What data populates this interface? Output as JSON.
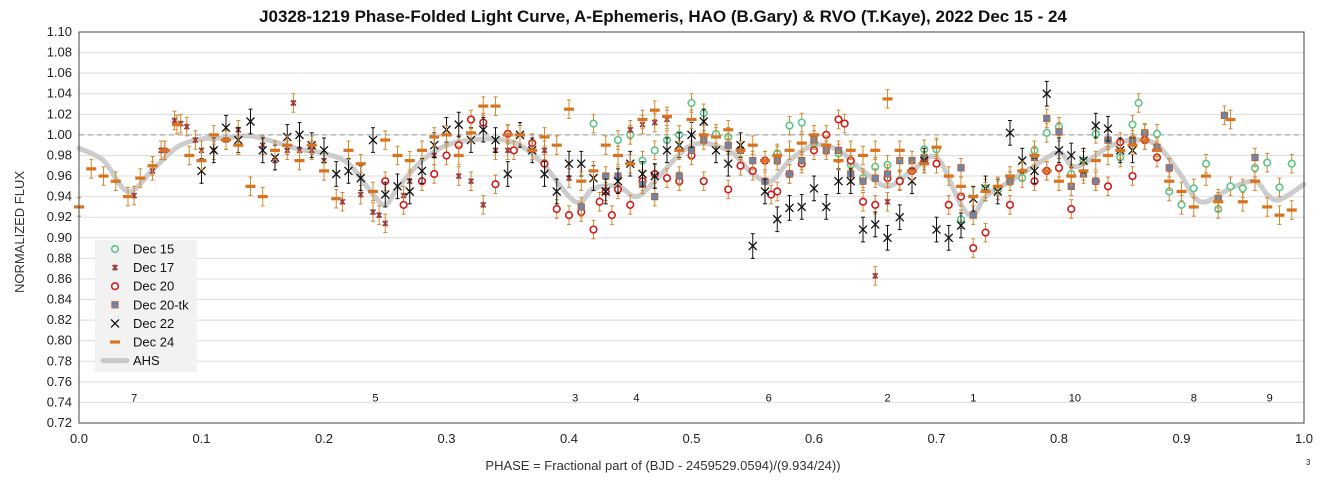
{
  "chart_data": {
    "type": "scatter",
    "title": "J0328-1219 Phase-Folded Light Curve, A-Ephemeris, HAO (B.Gary) & RVO (T.Kaye), 2022 Dec 15 - 24",
    "xlabel": "PHASE = Fractional part of (BJD - 2459529.0594)/(9.934/24))",
    "ylabel": "NORMALIZED FLUX",
    "xlim": [
      0.0,
      1.0
    ],
    "ylim": [
      0.72,
      1.1
    ],
    "x_ticks": [
      "0.0",
      "0.1",
      "0.2",
      "0.3",
      "0.4",
      "0.5",
      "0.6",
      "0.7",
      "0.8",
      "0.9",
      "1.0"
    ],
    "y_ticks": [
      "0.72",
      "0.74",
      "0.76",
      "0.78",
      "0.80",
      "0.82",
      "0.84",
      "0.86",
      "0.88",
      "0.90",
      "0.92",
      "0.94",
      "0.96",
      "0.98",
      "1.00",
      "1.02",
      "1.04",
      "1.06",
      "1.08",
      "1.10"
    ],
    "grid": "horizontal",
    "reference_line": 1.0,
    "footnote": "3",
    "legend_position": "lower-left",
    "colors": {
      "Dec 15": "#5dc48a",
      "Dec 17": "#9b3d3d",
      "Dec 20": "#d01c1c",
      "Dec 20-tk": "#6f84a8",
      "Dec 22": "#111111",
      "Dec 24": "#d9731f",
      "AHS": "#c8c8c8",
      "errorbar": "#d08a30"
    },
    "dip_labels": [
      {
        "text": "7",
        "x": 0.045
      },
      {
        "text": "5",
        "x": 0.242
      },
      {
        "text": "3",
        "x": 0.405
      },
      {
        "text": "4",
        "x": 0.455
      },
      {
        "text": "6",
        "x": 0.563
      },
      {
        "text": "2",
        "x": 0.66
      },
      {
        "text": "1",
        "x": 0.73
      },
      {
        "text": "10",
        "x": 0.813
      },
      {
        "text": "8",
        "x": 0.91
      },
      {
        "text": "9",
        "x": 0.972
      }
    ],
    "ahs_curve": {
      "name": "AHS",
      "x": [
        0.0,
        0.02,
        0.04,
        0.06,
        0.08,
        0.1,
        0.12,
        0.14,
        0.16,
        0.18,
        0.2,
        0.22,
        0.24,
        0.25,
        0.26,
        0.28,
        0.3,
        0.32,
        0.34,
        0.36,
        0.38,
        0.4,
        0.41,
        0.42,
        0.44,
        0.455,
        0.47,
        0.5,
        0.53,
        0.55,
        0.565,
        0.58,
        0.6,
        0.62,
        0.64,
        0.66,
        0.68,
        0.7,
        0.72,
        0.73,
        0.74,
        0.76,
        0.78,
        0.8,
        0.81,
        0.82,
        0.84,
        0.86,
        0.88,
        0.9,
        0.91,
        0.92,
        0.94,
        0.96,
        0.97,
        0.98,
        1.0
      ],
      "y": [
        0.987,
        0.975,
        0.945,
        0.966,
        0.988,
        0.996,
        0.997,
        0.999,
        0.993,
        0.986,
        0.982,
        0.972,
        0.942,
        0.932,
        0.948,
        0.975,
        0.99,
        0.995,
        0.996,
        0.99,
        0.97,
        0.94,
        0.935,
        0.948,
        0.95,
        0.94,
        0.955,
        0.99,
        0.985,
        0.962,
        0.955,
        0.975,
        0.99,
        0.985,
        0.965,
        0.95,
        0.965,
        0.978,
        0.932,
        0.922,
        0.94,
        0.955,
        0.97,
        0.983,
        0.97,
        0.972,
        0.988,
        0.995,
        0.99,
        0.96,
        0.94,
        0.935,
        0.948,
        0.955,
        0.942,
        0.937,
        0.952
      ]
    },
    "series": [
      {
        "name": "Dec 15",
        "marker": "circle-open",
        "x": [
          0.42,
          0.44,
          0.45,
          0.46,
          0.47,
          0.48,
          0.49,
          0.5,
          0.51,
          0.52,
          0.53,
          0.54,
          0.57,
          0.58,
          0.59,
          0.6,
          0.62,
          0.63,
          0.64,
          0.65,
          0.66,
          0.67,
          0.69,
          0.7,
          0.72,
          0.74,
          0.75,
          0.76,
          0.77,
          0.78,
          0.79,
          0.8,
          0.81,
          0.82,
          0.83,
          0.84,
          0.85,
          0.86,
          0.865,
          0.87,
          0.88,
          0.89,
          0.9,
          0.91,
          0.92,
          0.93,
          0.94,
          0.95,
          0.96,
          0.97,
          0.98,
          0.99
        ],
        "y": [
          1.011,
          0.995,
          1.0,
          0.975,
          0.985,
          0.995,
          1.0,
          1.031,
          1.021,
          1.001,
          0.998,
          0.985,
          0.982,
          1.009,
          1.012,
          0.992,
          0.982,
          0.971,
          0.958,
          0.969,
          0.971,
          0.956,
          0.986,
          0.986,
          0.918,
          0.948,
          0.946,
          0.955,
          0.958,
          0.985,
          1.002,
          1.008,
          0.962,
          0.975,
          1.001,
          0.995,
          0.978,
          1.01,
          1.031,
          1.001,
          1.001,
          0.945,
          0.932,
          0.948,
          0.972,
          0.928,
          0.95,
          0.948,
          0.968,
          0.973,
          0.949,
          0.972
        ]
      },
      {
        "name": "Dec 17",
        "marker": "x-small",
        "x": [
          0.045,
          0.06,
          0.067,
          0.07,
          0.078,
          0.083,
          0.088,
          0.095,
          0.1,
          0.11,
          0.12,
          0.13,
          0.15,
          0.16,
          0.17,
          0.175,
          0.18,
          0.19,
          0.2,
          0.215,
          0.23,
          0.24,
          0.245,
          0.25,
          0.265,
          0.27,
          0.29,
          0.31,
          0.32,
          0.33,
          0.34,
          0.35,
          0.38,
          0.4,
          0.45,
          0.46,
          0.47,
          0.48,
          0.65,
          0.66
        ],
        "y": [
          0.941,
          0.965,
          0.985,
          0.985,
          1.014,
          1.011,
          1.008,
          0.995,
          0.985,
          0.985,
          0.995,
          1.005,
          0.99,
          0.975,
          0.985,
          1.031,
          0.985,
          0.985,
          0.975,
          0.935,
          0.942,
          0.925,
          0.922,
          0.914,
          0.941,
          0.955,
          0.98,
          0.96,
          0.955,
          0.932,
          0.985,
          0.985,
          0.985,
          0.958,
          1.005,
          1.01,
          1.012,
          1.015,
          0.863,
          0.935
        ]
      },
      {
        "name": "Dec 20",
        "marker": "circle-open",
        "x": [
          0.25,
          0.265,
          0.28,
          0.29,
          0.3,
          0.31,
          0.32,
          0.33,
          0.34,
          0.35,
          0.355,
          0.37,
          0.38,
          0.39,
          0.4,
          0.41,
          0.42,
          0.425,
          0.43,
          0.435,
          0.44,
          0.45,
          0.46,
          0.47,
          0.48,
          0.49,
          0.5,
          0.51,
          0.53,
          0.54,
          0.55,
          0.56,
          0.565,
          0.57,
          0.58,
          0.59,
          0.6,
          0.61,
          0.62,
          0.625,
          0.63,
          0.64,
          0.65,
          0.66,
          0.67,
          0.68,
          0.69,
          0.7,
          0.71,
          0.72,
          0.73,
          0.74,
          0.76,
          0.78,
          0.79,
          0.8,
          0.81,
          0.83,
          0.84,
          0.85,
          0.86,
          0.87,
          0.88
        ],
        "y": [
          0.955,
          0.932,
          0.955,
          0.962,
          0.98,
          0.99,
          1.015,
          1.012,
          0.952,
          1.001,
          0.985,
          0.992,
          0.972,
          0.928,
          0.922,
          0.925,
          0.908,
          0.935,
          0.945,
          0.922,
          0.947,
          0.932,
          0.955,
          0.962,
          0.958,
          0.955,
          0.98,
          0.955,
          0.947,
          0.97,
          0.965,
          0.975,
          0.942,
          0.945,
          0.962,
          0.972,
          0.985,
          1.0,
          1.015,
          1.011,
          0.975,
          0.935,
          0.932,
          0.958,
          0.955,
          0.965,
          0.975,
          0.972,
          0.932,
          0.94,
          0.89,
          0.905,
          0.932,
          0.955,
          0.965,
          0.968,
          0.928,
          0.955,
          0.95,
          0.993,
          0.96,
          0.995,
          0.978
        ]
      },
      {
        "name": "Dec 20-tk",
        "marker": "square",
        "x": [
          0.41,
          0.43,
          0.44,
          0.46,
          0.47,
          0.49,
          0.5,
          0.51,
          0.53,
          0.54,
          0.55,
          0.56,
          0.57,
          0.58,
          0.59,
          0.6,
          0.61,
          0.62,
          0.63,
          0.64,
          0.65,
          0.66,
          0.67,
          0.68,
          0.69,
          0.72,
          0.73,
          0.76,
          0.78,
          0.79,
          0.8,
          0.81,
          0.82,
          0.83,
          0.84,
          0.86,
          0.87,
          0.88,
          0.89,
          0.93,
          0.935,
          0.96
        ],
        "y": [
          0.93,
          0.96,
          0.96,
          0.952,
          0.94,
          0.96,
          0.985,
          0.995,
          0.99,
          0.985,
          0.975,
          0.955,
          0.975,
          0.962,
          0.975,
          0.995,
          0.985,
          0.985,
          0.962,
          0.955,
          0.958,
          0.962,
          0.975,
          0.975,
          0.978,
          0.968,
          0.922,
          0.955,
          0.978,
          1.016,
          1.003,
          0.95,
          0.962,
          0.955,
          0.995,
          0.995,
          1.002,
          0.988,
          0.968,
          0.938,
          1.019,
          0.978
        ]
      },
      {
        "name": "Dec 22",
        "marker": "x-large",
        "x": [
          0.1,
          0.11,
          0.12,
          0.13,
          0.14,
          0.15,
          0.16,
          0.17,
          0.18,
          0.19,
          0.2,
          0.21,
          0.22,
          0.23,
          0.24,
          0.25,
          0.26,
          0.27,
          0.28,
          0.29,
          0.3,
          0.31,
          0.32,
          0.33,
          0.34,
          0.35,
          0.36,
          0.37,
          0.38,
          0.39,
          0.4,
          0.41,
          0.42,
          0.43,
          0.44,
          0.45,
          0.46,
          0.47,
          0.48,
          0.49,
          0.5,
          0.51,
          0.52,
          0.53,
          0.54,
          0.55,
          0.56,
          0.57,
          0.58,
          0.59,
          0.6,
          0.61,
          0.62,
          0.63,
          0.64,
          0.65,
          0.66,
          0.67,
          0.68,
          0.69,
          0.7,
          0.71,
          0.72,
          0.73,
          0.74,
          0.75,
          0.76,
          0.77,
          0.78,
          0.79,
          0.8,
          0.81,
          0.82,
          0.83,
          0.84,
          0.85,
          0.86
        ],
        "y": [
          0.965,
          0.985,
          1.007,
          0.995,
          1.013,
          0.985,
          0.978,
          0.998,
          1.0,
          0.99,
          0.985,
          0.962,
          0.965,
          0.958,
          0.995,
          0.942,
          0.95,
          0.945,
          0.965,
          0.99,
          1.005,
          1.01,
          0.995,
          1.005,
          0.995,
          0.962,
          1.0,
          0.985,
          0.962,
          0.945,
          0.972,
          0.972,
          0.958,
          0.945,
          0.955,
          0.972,
          0.962,
          0.96,
          0.985,
          0.99,
          1.0,
          1.013,
          0.985,
          0.972,
          0.99,
          0.892,
          0.945,
          0.918,
          0.929,
          0.93,
          0.948,
          0.93,
          0.955,
          0.955,
          0.908,
          0.913,
          0.9,
          0.92,
          0.955,
          0.975,
          0.908,
          0.9,
          0.912,
          0.938,
          0.948,
          0.945,
          1.002,
          0.975,
          0.965,
          1.04,
          0.985,
          0.98,
          0.975,
          1.009,
          1.006,
          0.985,
          0.985
        ]
      },
      {
        "name": "Dec 24",
        "marker": "dash",
        "x": [
          0.0,
          0.01,
          0.02,
          0.03,
          0.04,
          0.05,
          0.06,
          0.07,
          0.08,
          0.09,
          0.1,
          0.11,
          0.12,
          0.13,
          0.14,
          0.15,
          0.16,
          0.17,
          0.18,
          0.19,
          0.2,
          0.21,
          0.22,
          0.23,
          0.24,
          0.25,
          0.26,
          0.27,
          0.28,
          0.29,
          0.3,
          0.31,
          0.32,
          0.33,
          0.34,
          0.35,
          0.36,
          0.37,
          0.38,
          0.39,
          0.4,
          0.41,
          0.42,
          0.43,
          0.44,
          0.45,
          0.46,
          0.47,
          0.48,
          0.49,
          0.5,
          0.51,
          0.52,
          0.53,
          0.54,
          0.55,
          0.56,
          0.57,
          0.58,
          0.59,
          0.6,
          0.61,
          0.62,
          0.63,
          0.64,
          0.65,
          0.66,
          0.67,
          0.68,
          0.69,
          0.7,
          0.71,
          0.72,
          0.73,
          0.74,
          0.75,
          0.76,
          0.77,
          0.78,
          0.79,
          0.8,
          0.81,
          0.82,
          0.83,
          0.84,
          0.85,
          0.86,
          0.87,
          0.88,
          0.89,
          0.9,
          0.91,
          0.92,
          0.93,
          0.94,
          0.95,
          0.96,
          0.97,
          0.98,
          0.99
        ],
        "y": [
          0.93,
          0.967,
          0.96,
          0.955,
          0.94,
          0.958,
          0.97,
          0.985,
          1.01,
          0.98,
          0.975,
          1.0,
          0.995,
          0.99,
          0.95,
          0.94,
          0.985,
          0.99,
          0.975,
          0.99,
          0.965,
          0.938,
          0.985,
          0.972,
          0.945,
          0.995,
          0.98,
          0.975,
          0.985,
          0.998,
          1.0,
          0.98,
          1.002,
          1.028,
          1.028,
          1.0,
          1.0,
          0.985,
          0.998,
          0.99,
          1.025,
          0.955,
          0.965,
          0.99,
          0.98,
          0.972,
          1.015,
          1.024,
          1.018,
          0.985,
          1.015,
          1.0,
          0.998,
          1.005,
          0.985,
          0.99,
          0.975,
          0.98,
          0.985,
          0.992,
          1.0,
          0.99,
          0.975,
          0.985,
          0.98,
          0.985,
          1.035,
          0.985,
          0.965,
          0.972,
          0.988,
          0.96,
          0.95,
          0.94,
          0.945,
          0.95,
          0.96,
          0.965,
          0.98,
          0.965,
          0.955,
          0.96,
          0.965,
          0.975,
          0.98,
          0.985,
          0.99,
          0.995,
          0.985,
          0.955,
          0.945,
          0.93,
          0.96,
          0.935,
          1.015,
          0.935,
          0.955,
          0.93,
          0.922,
          0.927
        ]
      }
    ]
  }
}
